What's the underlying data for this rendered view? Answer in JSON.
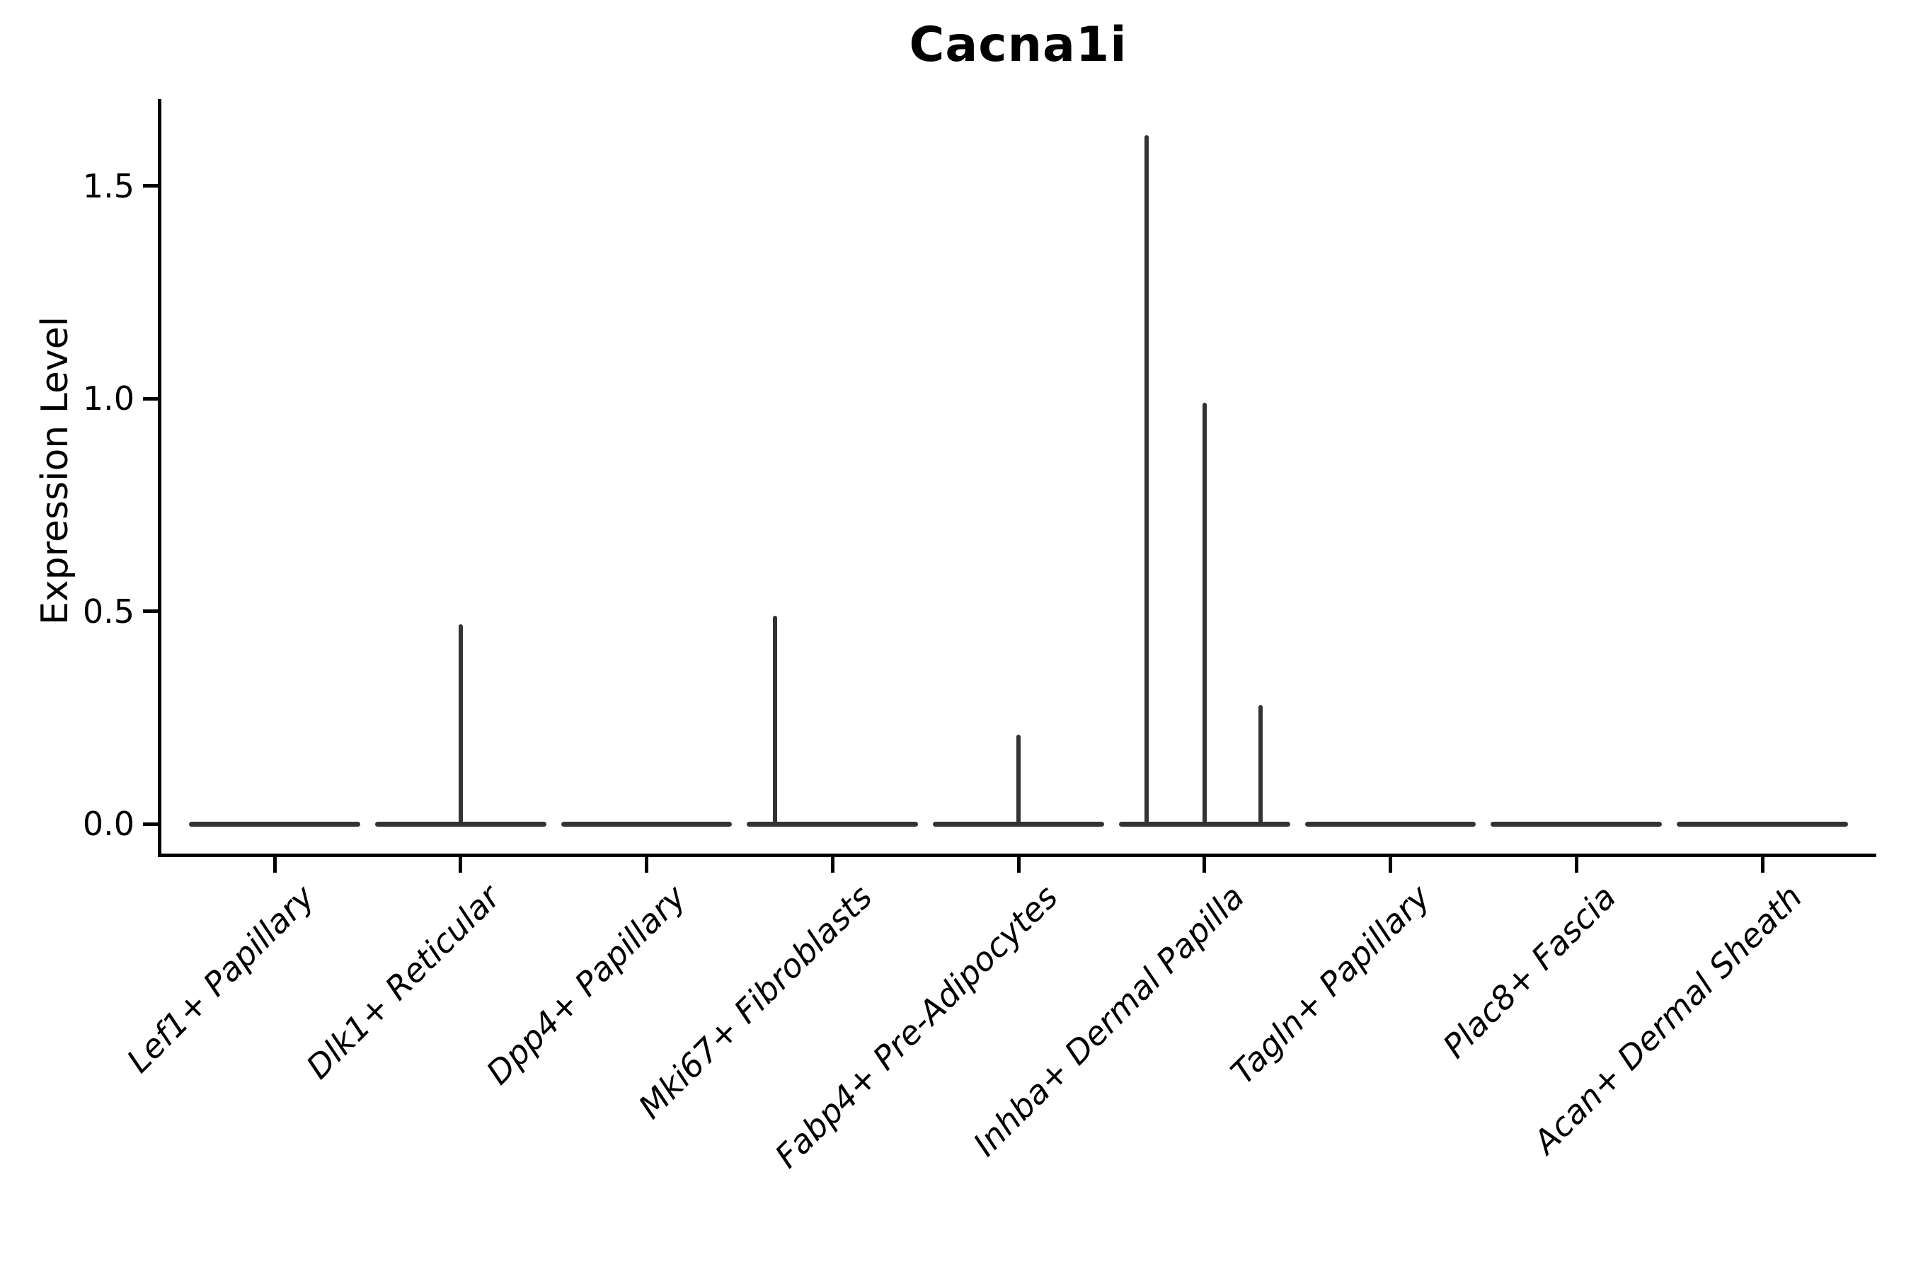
{
  "title": "Cacna1i",
  "ylabel": "Expression Level",
  "colors": {
    "violin": "#333333",
    "axis": "#000000",
    "text": "#000000",
    "background": "#ffffff"
  },
  "chart_data": {
    "type": "violin",
    "title": "Cacna1i",
    "xlabel": "",
    "ylabel": "Expression Level",
    "ylim": [
      -0.08,
      1.7
    ],
    "grid": false,
    "legend": null,
    "yticks": [
      1.5,
      1.0,
      0.5,
      0.0
    ],
    "ytick_labels": [
      "1.5",
      "1.0",
      "0.5",
      "0.0"
    ],
    "categories": [
      "Lef1+ Papillary",
      "Dlk1+ Reticular",
      "Dpp4+ Papillary",
      "Mki67+ Fibroblasts",
      "Fabp4+ Pre-Adipocytes",
      "Inhba+ Dermal Papilla",
      "Tagln+ Papillary",
      "Plac8+ Fascia",
      "Acan+ Dermal Sheath"
    ],
    "violin_width_frac": 0.92,
    "violins": [
      {
        "category": "Lef1+ Papillary",
        "baseline_value": 0.0,
        "spikes": []
      },
      {
        "category": "Dlk1+ Reticular",
        "baseline_value": 0.0,
        "spikes": [
          {
            "offset_frac": 0.0,
            "peak": 0.47
          }
        ]
      },
      {
        "category": "Dpp4+ Papillary",
        "baseline_value": 0.0,
        "spikes": []
      },
      {
        "category": "Mki67+ Fibroblasts",
        "baseline_value": 0.0,
        "spikes": [
          {
            "offset_frac": -0.31,
            "peak": 0.49
          }
        ]
      },
      {
        "category": "Fabp4+ Pre-Adipocytes",
        "baseline_value": 0.0,
        "spikes": [
          {
            "offset_frac": 0.0,
            "peak": 0.21
          }
        ]
      },
      {
        "category": "Inhba+ Dermal Papilla",
        "baseline_value": 0.0,
        "spikes": [
          {
            "offset_frac": -0.31,
            "peak": 1.62
          },
          {
            "offset_frac": 0.0,
            "peak": 0.99
          },
          {
            "offset_frac": 0.3,
            "peak": 0.28
          }
        ]
      },
      {
        "category": "Tagln+ Papillary",
        "baseline_value": 0.0,
        "spikes": []
      },
      {
        "category": "Plac8+ Fascia",
        "baseline_value": 0.0,
        "spikes": []
      },
      {
        "category": "Acan+ Dermal Sheath",
        "baseline_value": 0.0,
        "spikes": []
      }
    ]
  }
}
